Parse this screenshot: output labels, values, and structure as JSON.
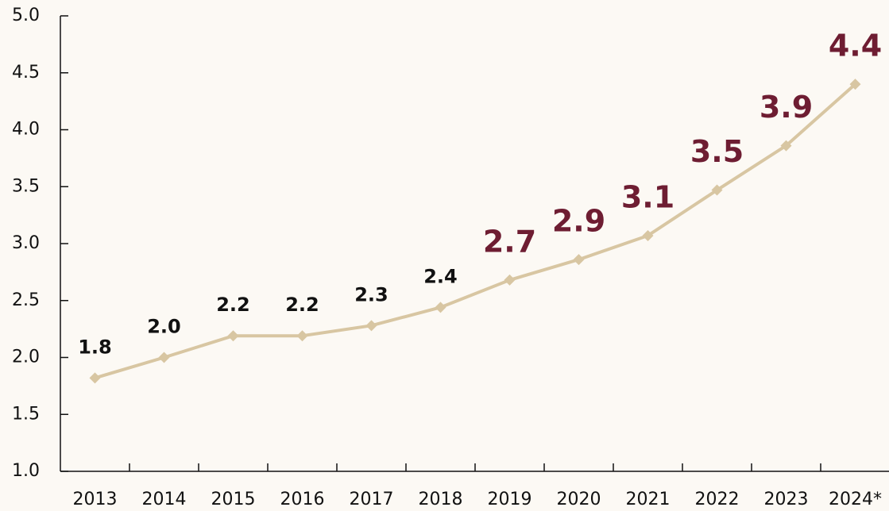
{
  "chart_data": {
    "type": "line",
    "categories": [
      "2013",
      "2014",
      "2015",
      "2016",
      "2017",
      "2018",
      "2019",
      "2020",
      "2021",
      "2022",
      "2023",
      "2024*"
    ],
    "series": [
      {
        "color": "#d8c6a2",
        "values": [
          1.82,
          2.0,
          2.19,
          2.19,
          2.28,
          2.44,
          2.68,
          2.86,
          3.07,
          3.47,
          3.86,
          4.4
        ],
        "value_labels": [
          "1.8",
          "2.0",
          "2.2",
          "2.2",
          "2.3",
          "2.4",
          "2.7",
          "2.9",
          "3.1",
          "3.5",
          "3.9",
          "4.4"
        ],
        "value_label_colors": [
          "#111111",
          "#111111",
          "#111111",
          "#111111",
          "#111111",
          "#111111",
          "#6e1d32",
          "#6e1d32",
          "#6e1d32",
          "#6e1d32",
          "#6e1d32",
          "#6e1d32"
        ]
      }
    ],
    "ylim": [
      1.0,
      5.0
    ],
    "yticks": [
      {
        "value": 1.0,
        "label": "1.0"
      },
      1.5,
      {
        "value": 2.0,
        "label": "2.0"
      },
      2.5,
      {
        "value": 3.0,
        "label": "3.0"
      },
      3.5,
      {
        "value": 4.0,
        "label": "4.0"
      },
      4.5,
      {
        "value": 5.0,
        "label": "5.0"
      }
    ]
  }
}
